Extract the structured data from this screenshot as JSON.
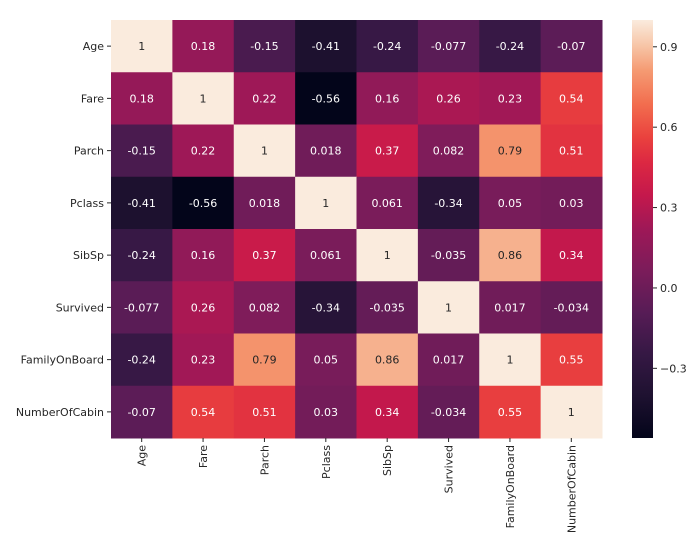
{
  "chart_data": {
    "type": "heatmap",
    "title": "",
    "xlabel": "",
    "ylabel": "",
    "row_labels": [
      "Age",
      "Fare",
      "Parch",
      "Pclass",
      "SibSp",
      "Survived",
      "FamilyOnBoard",
      "NumberOfCabin"
    ],
    "col_labels": [
      "Age",
      "Fare",
      "Parch",
      "Pclass",
      "SibSp",
      "Survived",
      "FamilyOnBoard",
      "NumberOfCabin"
    ],
    "values": [
      [
        1,
        0.18,
        -0.15,
        -0.41,
        -0.24,
        -0.077,
        -0.24,
        -0.07
      ],
      [
        0.18,
        1,
        0.22,
        -0.56,
        0.16,
        0.26,
        0.23,
        0.54
      ],
      [
        -0.15,
        0.22,
        1,
        0.018,
        0.37,
        0.082,
        0.79,
        0.51
      ],
      [
        -0.41,
        -0.56,
        0.018,
        1,
        0.061,
        -0.34,
        0.05,
        0.03
      ],
      [
        -0.24,
        0.16,
        0.37,
        0.061,
        1,
        -0.035,
        0.86,
        0.34
      ],
      [
        -0.077,
        0.26,
        0.082,
        -0.34,
        -0.035,
        1,
        0.017,
        -0.034
      ],
      [
        -0.24,
        0.23,
        0.79,
        0.05,
        0.86,
        0.017,
        1,
        0.55
      ],
      [
        -0.07,
        0.54,
        0.51,
        0.03,
        0.34,
        -0.034,
        0.55,
        1
      ]
    ],
    "annotations": [
      [
        "1",
        "0.18",
        "-0.15",
        "-0.41",
        "-0.24",
        "-0.077",
        "-0.24",
        "-0.07"
      ],
      [
        "0.18",
        "1",
        "0.22",
        "-0.56",
        "0.16",
        "0.26",
        "0.23",
        "0.54"
      ],
      [
        "-0.15",
        "0.22",
        "1",
        "0.018",
        "0.37",
        "0.082",
        "0.79",
        "0.51"
      ],
      [
        "-0.41",
        "-0.56",
        "0.018",
        "1",
        "0.061",
        "-0.34",
        "0.05",
        "0.03"
      ],
      [
        "-0.24",
        "0.16",
        "0.37",
        "0.061",
        "1",
        "-0.035",
        "0.86",
        "0.34"
      ],
      [
        "-0.077",
        "0.26",
        "0.082",
        "-0.34",
        "-0.035",
        "1",
        "0.017",
        "-0.034"
      ],
      [
        "-0.24",
        "0.23",
        "0.79",
        "0.05",
        "0.86",
        "0.017",
        "1",
        "0.55"
      ],
      [
        "-0.07",
        "0.54",
        "0.51",
        "0.03",
        "0.34",
        "-0.034",
        "0.55",
        "1"
      ]
    ],
    "colormap": "rocket",
    "vmin": -0.56,
    "vmax": 1.0,
    "colorbar": {
      "ticks": [
        0.9,
        0.6,
        0.3,
        0.0,
        -0.3
      ],
      "tick_labels": [
        "0.9",
        "0.6",
        "0.3",
        "0.0",
        "−0.3"
      ],
      "placement": "right"
    },
    "grid": false
  }
}
